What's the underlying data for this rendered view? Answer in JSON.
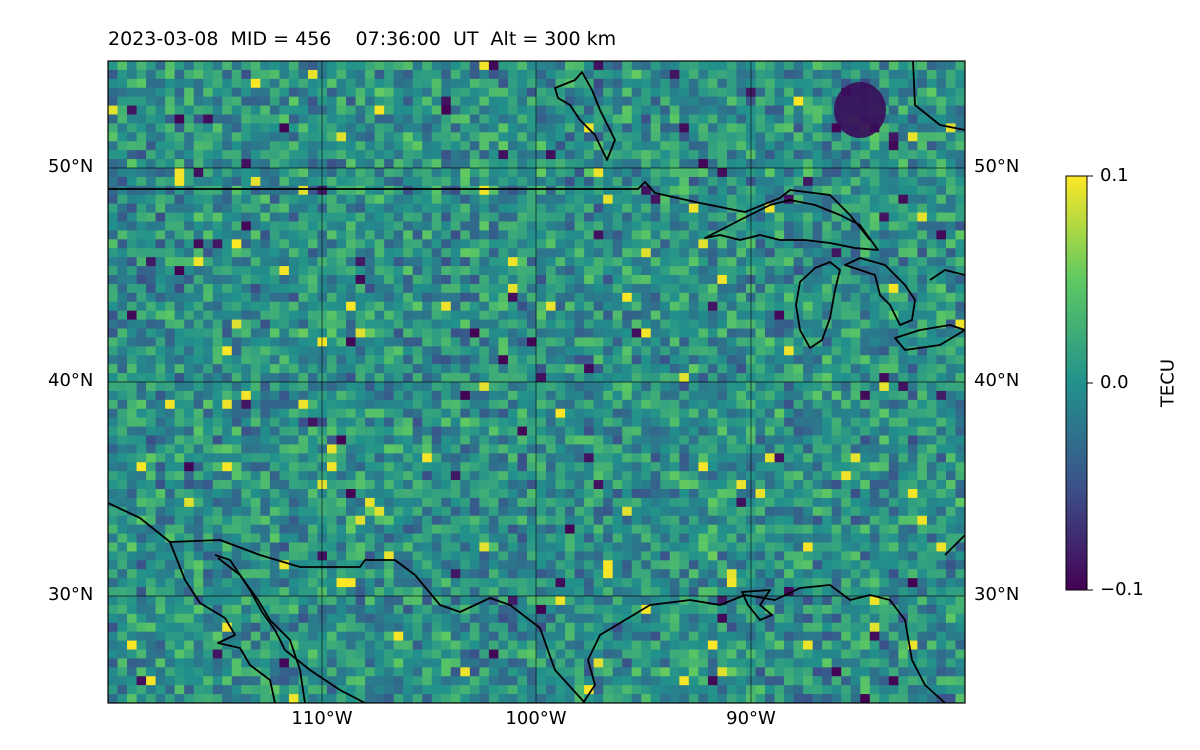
{
  "title": "2023-03-08  MID = 456    07:36:00  UT  Alt = 300 km",
  "map": {
    "lon_range": [
      -120,
      -80
    ],
    "lat_range": [
      25,
      55
    ],
    "lat_ticks": [
      {
        "value": 30,
        "label": "30°N"
      },
      {
        "value": 40,
        "label": "40°N"
      },
      {
        "value": 50,
        "label": "50°N"
      }
    ],
    "lon_ticks": [
      {
        "value": -110,
        "label": "110°W"
      },
      {
        "value": -100,
        "label": "100°W"
      },
      {
        "value": -90,
        "label": "90°W"
      }
    ],
    "grid": true,
    "coastlines": true
  },
  "colorbar": {
    "label": "TECU",
    "min": -0.1,
    "max": 0.1,
    "ticks": [
      {
        "value": 0.1,
        "label": "0.1"
      },
      {
        "value": 0.0,
        "label": "0.0"
      },
      {
        "value": -0.1,
        "label": "−0.1"
      }
    ],
    "colormap": [
      "#440154",
      "#3b528b",
      "#21918c",
      "#5ec962",
      "#fde725"
    ]
  }
}
